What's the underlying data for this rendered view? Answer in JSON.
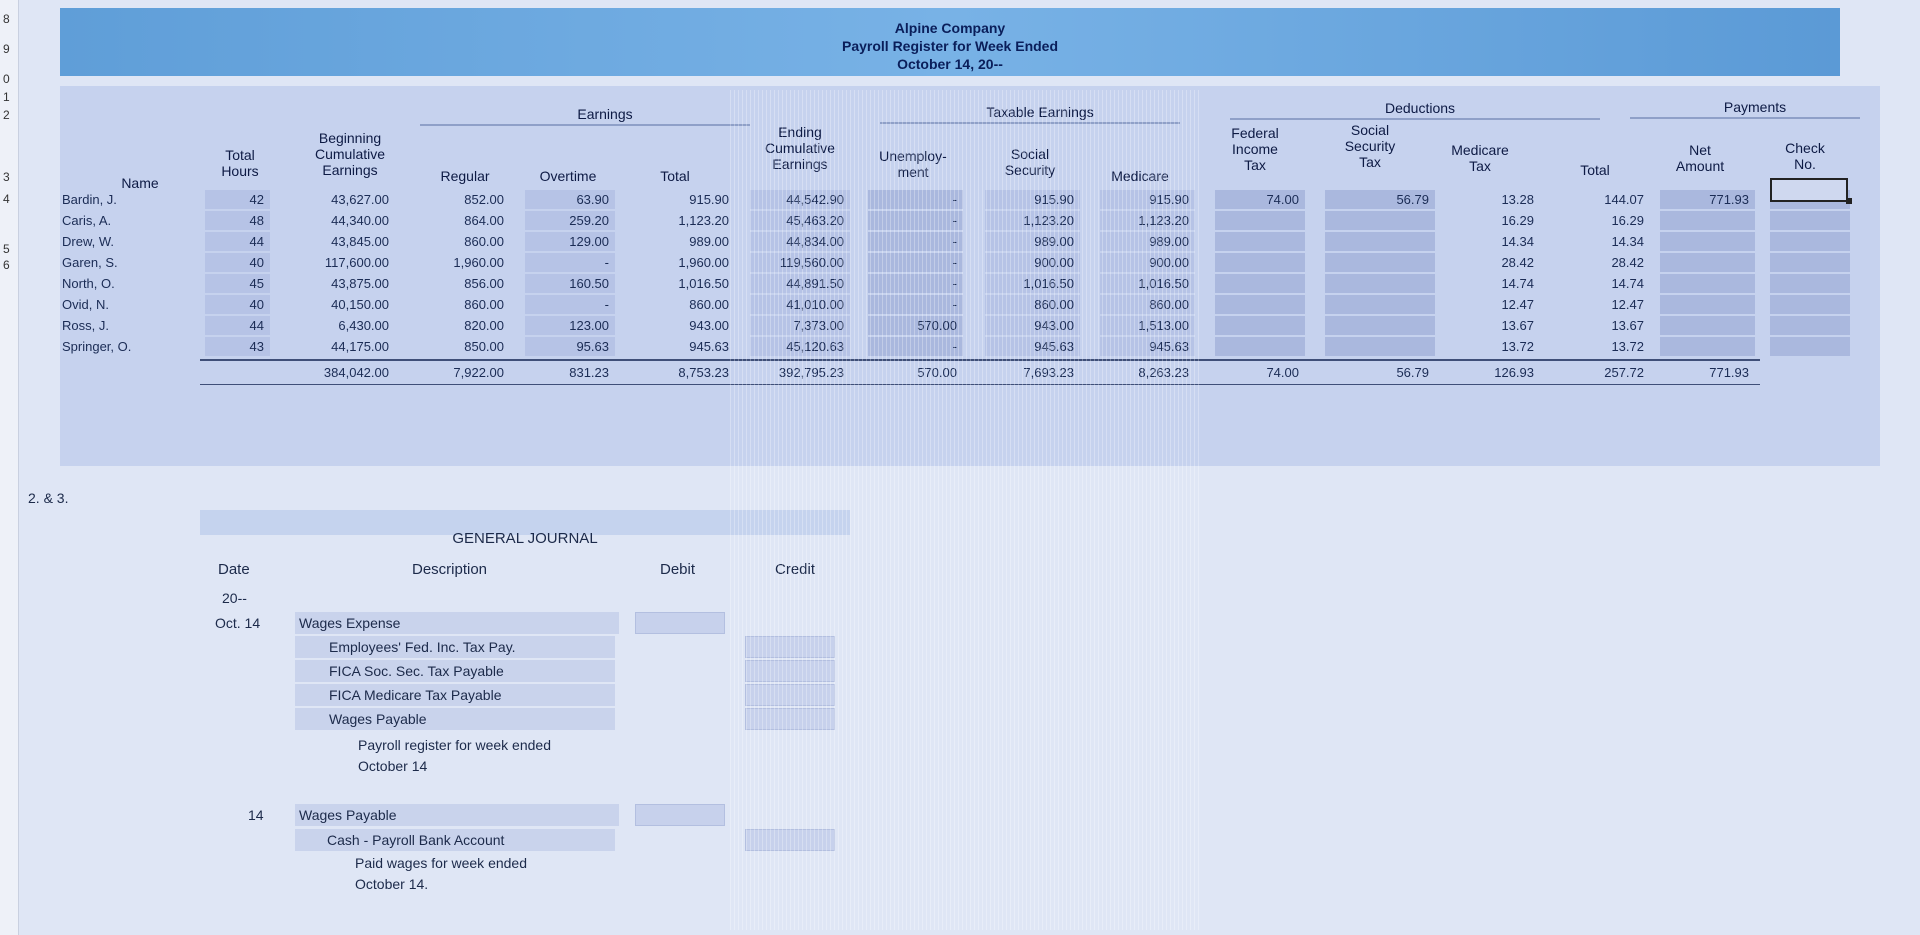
{
  "row_numbers": [
    "8",
    "9",
    "0",
    "1",
    "2",
    "3",
    "4",
    "5",
    "6"
  ],
  "company": "Alpine Company",
  "report_title": "Payroll Register for Week Ended",
  "report_date": "October 14, 20--",
  "groups": {
    "earnings": "Earnings",
    "taxable": "Taxable Earnings",
    "deductions": "Deductions",
    "payments": "Payments"
  },
  "columns": {
    "name": "Name",
    "total_hours": [
      "Total",
      "Hours"
    ],
    "beg_cum": [
      "Beginning",
      "Cumulative",
      "Earnings"
    ],
    "regular": "Regular",
    "overtime": "Overtime",
    "total": "Total",
    "end_cum": [
      "Ending",
      "Cumulative",
      "Earnings"
    ],
    "unemployment": [
      "Unemploy-",
      "ment"
    ],
    "social_security": [
      "Social",
      "Security"
    ],
    "medicare": "Medicare",
    "fed_income_tax": [
      "Federal",
      "Income",
      "Tax"
    ],
    "ss_tax": [
      "Social",
      "Security",
      "Tax"
    ],
    "medicare_tax": [
      "Medicare",
      "Tax"
    ],
    "ded_total": "Total",
    "net_amount": [
      "Net",
      "Amount"
    ],
    "check_no": [
      "Check",
      "No."
    ]
  },
  "rows": [
    {
      "name": "Bardin, J.",
      "hours": "42",
      "beg": "43,627.00",
      "reg": "852.00",
      "ot": "63.90",
      "tot": "915.90",
      "end": "44,542.90",
      "unemp": "-",
      "ss": "915.90",
      "med": "915.90",
      "fed": "74.00",
      "sstax": "56.79",
      "medtax": "13.28",
      "dedtot": "144.07",
      "net": "771.93",
      "check": ""
    },
    {
      "name": "Caris, A.",
      "hours": "48",
      "beg": "44,340.00",
      "reg": "864.00",
      "ot": "259.20",
      "tot": "1,123.20",
      "end": "45,463.20",
      "unemp": "-",
      "ss": "1,123.20",
      "med": "1,123.20",
      "fed": "",
      "sstax": "",
      "medtax": "16.29",
      "dedtot": "16.29",
      "net": "",
      "check": ""
    },
    {
      "name": "Drew, W.",
      "hours": "44",
      "beg": "43,845.00",
      "reg": "860.00",
      "ot": "129.00",
      "tot": "989.00",
      "end": "44,834.00",
      "unemp": "-",
      "ss": "989.00",
      "med": "989.00",
      "fed": "",
      "sstax": "",
      "medtax": "14.34",
      "dedtot": "14.34",
      "net": "",
      "check": ""
    },
    {
      "name": "Garen, S.",
      "hours": "40",
      "beg": "117,600.00",
      "reg": "1,960.00",
      "ot": "-",
      "tot": "1,960.00",
      "end": "119,560.00",
      "unemp": "-",
      "ss": "900.00",
      "med": "900.00",
      "fed": "",
      "sstax": "",
      "medtax": "28.42",
      "dedtot": "28.42",
      "net": "",
      "check": ""
    },
    {
      "name": "North, O.",
      "hours": "45",
      "beg": "43,875.00",
      "reg": "856.00",
      "ot": "160.50",
      "tot": "1,016.50",
      "end": "44,891.50",
      "unemp": "-",
      "ss": "1,016.50",
      "med": "1,016.50",
      "fed": "",
      "sstax": "",
      "medtax": "14.74",
      "dedtot": "14.74",
      "net": "",
      "check": ""
    },
    {
      "name": "Ovid, N.",
      "hours": "40",
      "beg": "40,150.00",
      "reg": "860.00",
      "ot": "-",
      "tot": "860.00",
      "end": "41,010.00",
      "unemp": "-",
      "ss": "860.00",
      "med": "860.00",
      "fed": "",
      "sstax": "",
      "medtax": "12.47",
      "dedtot": "12.47",
      "net": "",
      "check": ""
    },
    {
      "name": "Ross, J.",
      "hours": "44",
      "beg": "6,430.00",
      "reg": "820.00",
      "ot": "123.00",
      "tot": "943.00",
      "end": "7,373.00",
      "unemp": "570.00",
      "ss": "943.00",
      "med": "1,513.00",
      "fed": "",
      "sstax": "",
      "medtax": "13.67",
      "dedtot": "13.67",
      "net": "",
      "check": ""
    },
    {
      "name": "Springer, O.",
      "hours": "43",
      "beg": "44,175.00",
      "reg": "850.00",
      "ot": "95.63",
      "tot": "945.63",
      "end": "45,120.63",
      "unemp": "-",
      "ss": "945.63",
      "med": "945.63",
      "fed": "",
      "sstax": "",
      "medtax": "13.72",
      "dedtot": "13.72",
      "net": "",
      "check": ""
    }
  ],
  "totals": {
    "beg": "384,042.00",
    "reg": "7,922.00",
    "ot": "831.23",
    "tot": "8,753.23",
    "end": "392,795.23",
    "unemp": "570.00",
    "ss": "7,693.23",
    "med": "8,263.23",
    "fed": "74.00",
    "sstax": "56.79",
    "medtax": "126.93",
    "dedtot": "257.72",
    "net": "771.93"
  },
  "section_label": "2. & 3.",
  "journal": {
    "title": "GENERAL JOURNAL",
    "headers": {
      "date": "Date",
      "description": "Description",
      "debit": "Debit",
      "credit": "Credit"
    },
    "year": "20--",
    "month_day": "Oct. 14",
    "day2": "14",
    "entry1": {
      "debit_account": "Wages Expense",
      "credits": [
        "Employees' Fed. Inc. Tax Pay.",
        "FICA Soc. Sec. Tax Payable",
        "FICA Medicare Tax Payable",
        "Wages Payable"
      ],
      "explanation": [
        "Payroll register for week ended",
        "October 14"
      ]
    },
    "entry2": {
      "debit_account": "Wages Payable",
      "credit_account": "Cash - Payroll Bank Account",
      "explanation": [
        "Paid wages for week ended",
        "October 14."
      ]
    }
  }
}
